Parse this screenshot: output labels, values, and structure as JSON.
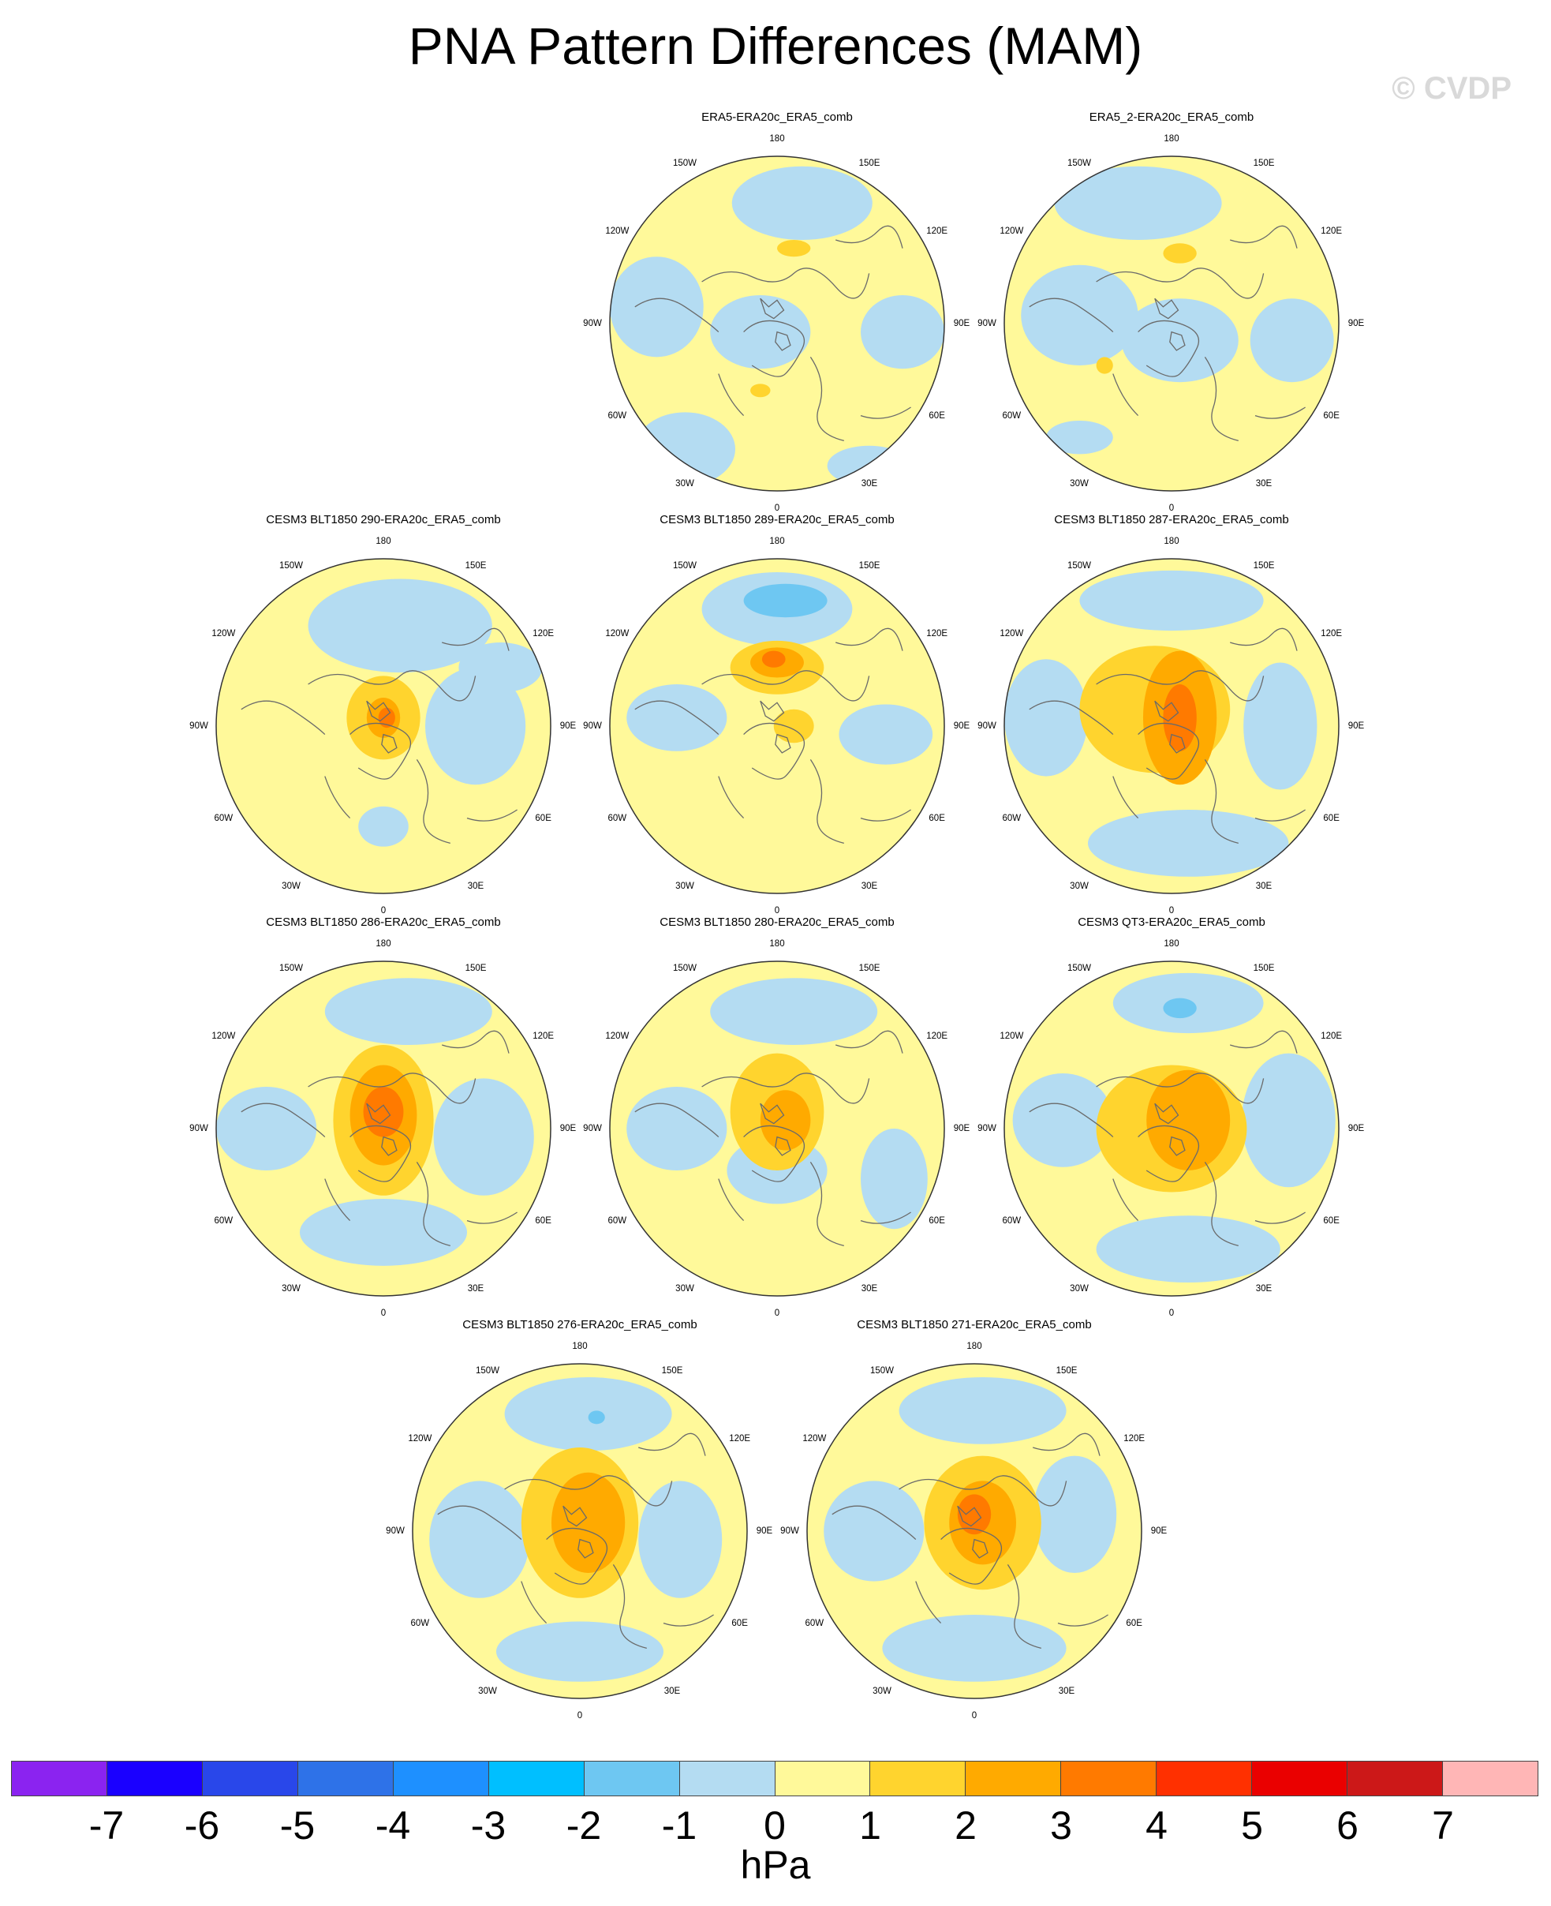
{
  "title": "PNA Pattern Differences (MAM)",
  "watermark": "© CVDP",
  "colors": {
    "neg_1_0": "#b4dcf2",
    "neg_2_1": "#6ec7f2",
    "pos_0_1": "#fff99a",
    "pos_1_2": "#ffd42e",
    "pos_2_3": "#ffaa00",
    "pos_3_4": "#ff7a00",
    "coast": "#6a6a6a"
  },
  "lon_labels": [
    "180",
    "150E",
    "120E",
    "90E",
    "60E",
    "30E",
    "0",
    "30W",
    "60W",
    "90W",
    "120W",
    "150W"
  ],
  "panels": [
    {
      "title": "ERA5-ERA20c_ERA5_comb",
      "pattern": "obs1"
    },
    {
      "title": "ERA5_2-ERA20c_ERA5_comb",
      "pattern": "obs2"
    },
    {
      "title": "CESM3 BLT1850 290-ERA20c_ERA5_comb",
      "pattern": "m290"
    },
    {
      "title": "CESM3 BLT1850 289-ERA20c_ERA5_comb",
      "pattern": "m289"
    },
    {
      "title": "CESM3 BLT1850 287-ERA20c_ERA5_comb",
      "pattern": "m287"
    },
    {
      "title": "CESM3 BLT1850 286-ERA20c_ERA5_comb",
      "pattern": "m286"
    },
    {
      "title": "CESM3 BLT1850 280-ERA20c_ERA5_comb",
      "pattern": "m280"
    },
    {
      "title": "CESM3 QT3-ERA20c_ERA5_comb",
      "pattern": "qt3"
    },
    {
      "title": "CESM3 BLT1850 276-ERA20c_ERA5_comb",
      "pattern": "m276"
    },
    {
      "title": "CESM3 BLT1850 271-ERA20c_ERA5_comb",
      "pattern": "m271"
    }
  ],
  "colorbar": {
    "colors": [
      "#8b23f0",
      "#1a00ff",
      "#2947ea",
      "#2e72e8",
      "#1e90ff",
      "#00bfff",
      "#6ec7f2",
      "#b4dcf2",
      "#fff99a",
      "#ffd42e",
      "#ffaa00",
      "#ff7a00",
      "#ff3000",
      "#ea0000",
      "#cc1818",
      "#ffb6b6"
    ],
    "ticks": [
      "-7",
      "-6",
      "-5",
      "-4",
      "-3",
      "-2",
      "-1",
      "0",
      "1",
      "2",
      "3",
      "4",
      "5",
      "6",
      "7"
    ],
    "unit": "hPa"
  }
}
